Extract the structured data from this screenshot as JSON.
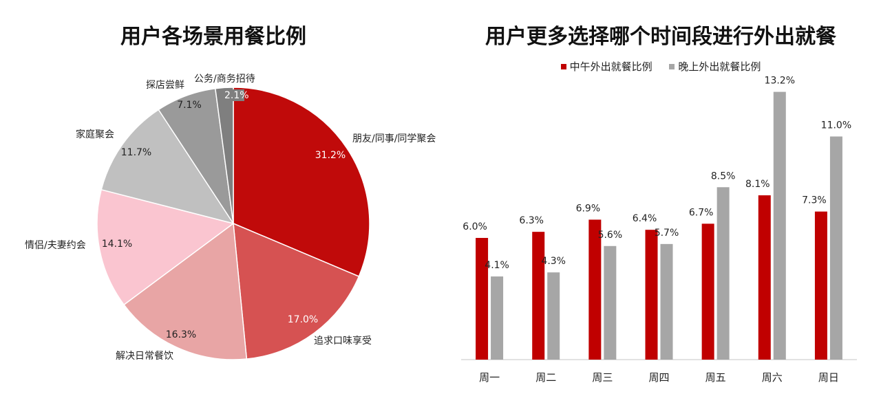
{
  "chart_data": [
    {
      "type": "pie",
      "title": "用户各场景用餐比例",
      "categories": [
        "朋友/同事/同学聚会",
        "追求口味享受",
        "解决日常餐饮",
        "情侣/夫妻约会",
        "家庭聚会",
        "探店尝鲜",
        "公务/商务招待"
      ],
      "values": [
        31.2,
        17.0,
        16.3,
        14.1,
        11.7,
        7.1,
        2.1
      ],
      "value_labels": [
        "31.2%",
        "17.0%",
        "16.3%",
        "14.1%",
        "11.7%",
        "7.1%",
        "2.1%"
      ],
      "colors": [
        "#c00a0a",
        "#d65252",
        "#e8a5a5",
        "#fac5d0",
        "#c0c0c0",
        "#9a9a9a",
        "#7f7f7f"
      ],
      "start": "12 o'clock, clockwise"
    },
    {
      "type": "bar",
      "title": "用户更多选择哪个时间段进行外出就餐",
      "categories": [
        "周一",
        "周二",
        "周三",
        "周四",
        "周五",
        "周六",
        "周日"
      ],
      "series": [
        {
          "name": "中午外出就餐比例",
          "values": [
            6.0,
            6.3,
            6.9,
            6.4,
            6.7,
            8.1,
            7.3
          ],
          "labels": [
            "6.0%",
            "6.3%",
            "6.9%",
            "6.4%",
            "6.7%",
            "8.1%",
            "7.3%"
          ],
          "color": "#c00000"
        },
        {
          "name": "晚上外出就餐比例",
          "values": [
            4.1,
            4.3,
            5.6,
            5.7,
            8.5,
            13.2,
            11.0
          ],
          "labels": [
            "4.1%",
            "4.3%",
            "5.6%",
            "5.7%",
            "8.5%",
            "13.2%",
            "11.0%"
          ],
          "color": "#a6a6a6"
        }
      ],
      "ylim": [
        0,
        14
      ],
      "legend": "top-center",
      "grid": false
    }
  ]
}
